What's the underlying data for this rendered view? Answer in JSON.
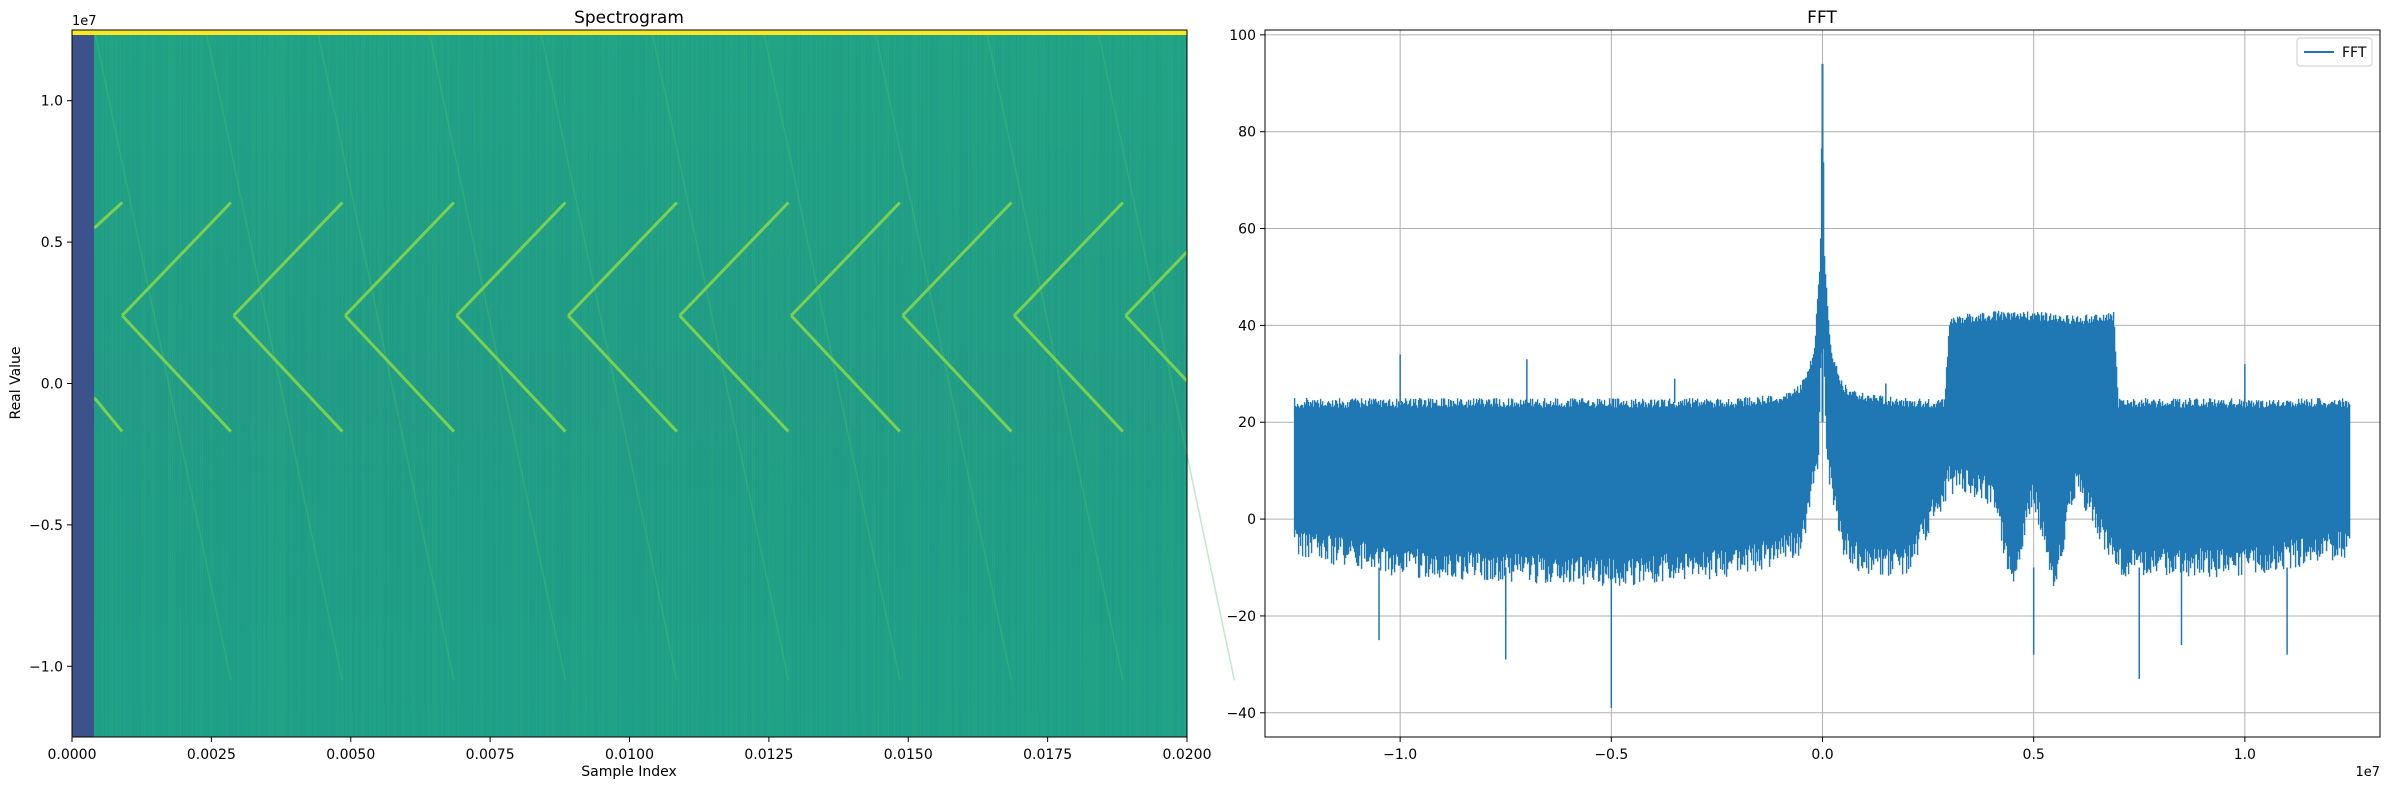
{
  "chart_data": [
    {
      "type": "heatmap",
      "title": "Spectrogram",
      "xlabel": "Sample Index",
      "ylabel": "Real Value",
      "offset_label": "1e7",
      "xlim": [
        0,
        0.02
      ],
      "ylim": [
        -12500000,
        12500000
      ],
      "xticks": [
        0,
        0.0025,
        0.005,
        0.0075,
        0.01,
        0.0125,
        0.015,
        0.0175,
        0.02
      ],
      "xtick_labels": [
        "0.0000",
        "0.0025",
        "0.0050",
        "0.0075",
        "0.0100",
        "0.0125",
        "0.0150",
        "0.0175",
        "0.0200"
      ],
      "yticks": [
        -10000000,
        -5000000,
        0,
        5000000,
        10000000
      ],
      "ytick_labels": [
        "−1.0",
        "−0.5",
        "0.0",
        "0.5",
        "1.0"
      ],
      "colormap": "viridis",
      "colors": {
        "background": "#20a386",
        "low": "#3b528b",
        "ridge": "#6ccd5a",
        "top": "#fde725"
      },
      "sweeps": {
        "starts": [
          0.0009,
          0.0029,
          0.0049,
          0.0069,
          0.0089,
          0.0109,
          0.0129,
          0.0149,
          0.0169,
          0.0189
        ],
        "duration": 0.00195,
        "vertex_value": 2400000,
        "upper_end_value": 6400000,
        "lower_end_value": -1700000,
        "partial_upper": [
          0.0004,
          5500000,
          0.0009,
          6400000
        ],
        "partial_lower": [
          0.0004,
          -500000,
          0.0009,
          -1700000
        ]
      },
      "grid": false
    },
    {
      "type": "line",
      "title": "FFT",
      "xlabel": "",
      "ylabel": "",
      "offset_label": "1e7",
      "xlim": [
        -13200000,
        13200000
      ],
      "ylim": [
        -45,
        101
      ],
      "xticks": [
        -10000000,
        -5000000,
        0,
        5000000,
        10000000
      ],
      "xtick_labels": [
        "−1.0",
        "−0.5",
        "0.0",
        "0.5",
        "1.0"
      ],
      "yticks": [
        -40,
        -20,
        0,
        20,
        40,
        60,
        80,
        100
      ],
      "ytick_labels": [
        "−40",
        "−20",
        "0",
        "20",
        "40",
        "60",
        "80",
        "100"
      ],
      "grid": true,
      "legend_position": "top-right",
      "series": [
        {
          "name": "FFT",
          "color": "#1f77b4",
          "upper_envelope_x": [
            -12500000,
            -10000000,
            -5000000,
            -2000000,
            -1000000,
            -500000,
            -200000,
            -50000,
            0,
            50000,
            200000,
            500000,
            1000000,
            2000000,
            2900000,
            3000000,
            4000000,
            5000000,
            6000000,
            6900000,
            7000000,
            10000000,
            12500000
          ],
          "upper_envelope_y": [
            25,
            25,
            25,
            25,
            26,
            28,
            35,
            55,
            94,
            55,
            35,
            28,
            26,
            25,
            25,
            42,
            43,
            43,
            42,
            43,
            25,
            25,
            25
          ],
          "lower_envelope_x": [
            -12500000,
            -10000000,
            -5000000,
            -2000000,
            -500000,
            -100000,
            0,
            100000,
            500000,
            1000000,
            2000000,
            3000000,
            4000000,
            4500000,
            5000000,
            5500000,
            6000000,
            7000000,
            10000000,
            12500000
          ],
          "lower_envelope_y": [
            -8,
            -12,
            -14,
            -12,
            -8,
            10,
            40,
            10,
            -8,
            -12,
            -12,
            5,
            3,
            -15,
            3,
            -15,
            5,
            -12,
            -12,
            -8
          ],
          "spikes": [
            {
              "x": -10000000,
              "y": 34
            },
            {
              "x": -7000000,
              "y": 33
            },
            {
              "x": -3500000,
              "y": 29
            },
            {
              "x": 1500000,
              "y": 28
            },
            {
              "x": 10000000,
              "y": 32
            },
            {
              "x": -5000000,
              "y": -39
            },
            {
              "x": -7500000,
              "y": -29
            },
            {
              "x": 7500000,
              "y": -33
            },
            {
              "x": 11000000,
              "y": -28
            },
            {
              "x": 5000000,
              "y": -28
            },
            {
              "x": -10500000,
              "y": -25
            },
            {
              "x": 8500000,
              "y": -26
            }
          ]
        }
      ]
    }
  ]
}
